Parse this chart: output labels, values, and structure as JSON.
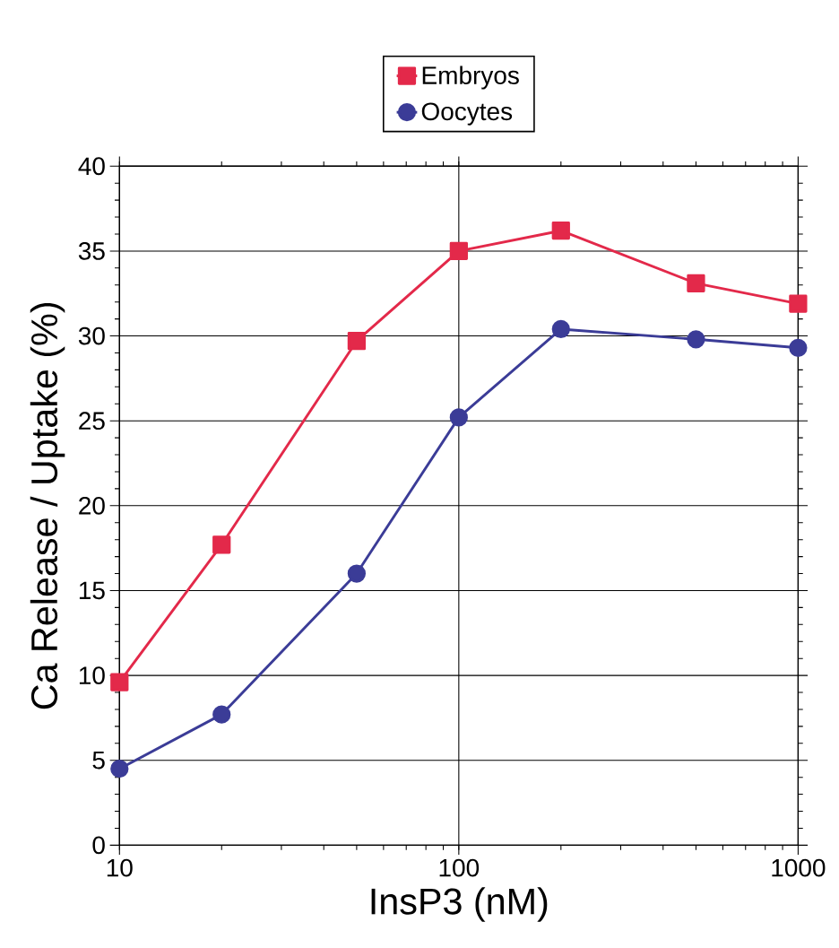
{
  "chart_data": {
    "type": "line",
    "xlabel": "InsP3 (nM)",
    "ylabel": "Ca Release / Uptake (%)",
    "log": "x",
    "grid": true,
    "legend": "top",
    "x": [
      10,
      20,
      50,
      100,
      200,
      500,
      1000
    ],
    "xlim": [
      10,
      1000
    ],
    "xticks": [
      10,
      100,
      1000
    ],
    "ylim": [
      0,
      40
    ],
    "yticks": [
      0,
      5,
      10,
      15,
      20,
      25,
      30,
      35,
      40
    ],
    "series": [
      {
        "name": "Embryos",
        "color": "#e3294a",
        "marker": "square",
        "values": [
          9.6,
          17.7,
          29.7,
          35.0,
          36.2,
          33.1,
          31.9
        ]
      },
      {
        "name": "Oocytes",
        "color": "#3b3c97",
        "marker": "circle",
        "values": [
          4.5,
          7.7,
          16.0,
          25.2,
          30.4,
          29.8,
          29.3
        ]
      }
    ]
  }
}
